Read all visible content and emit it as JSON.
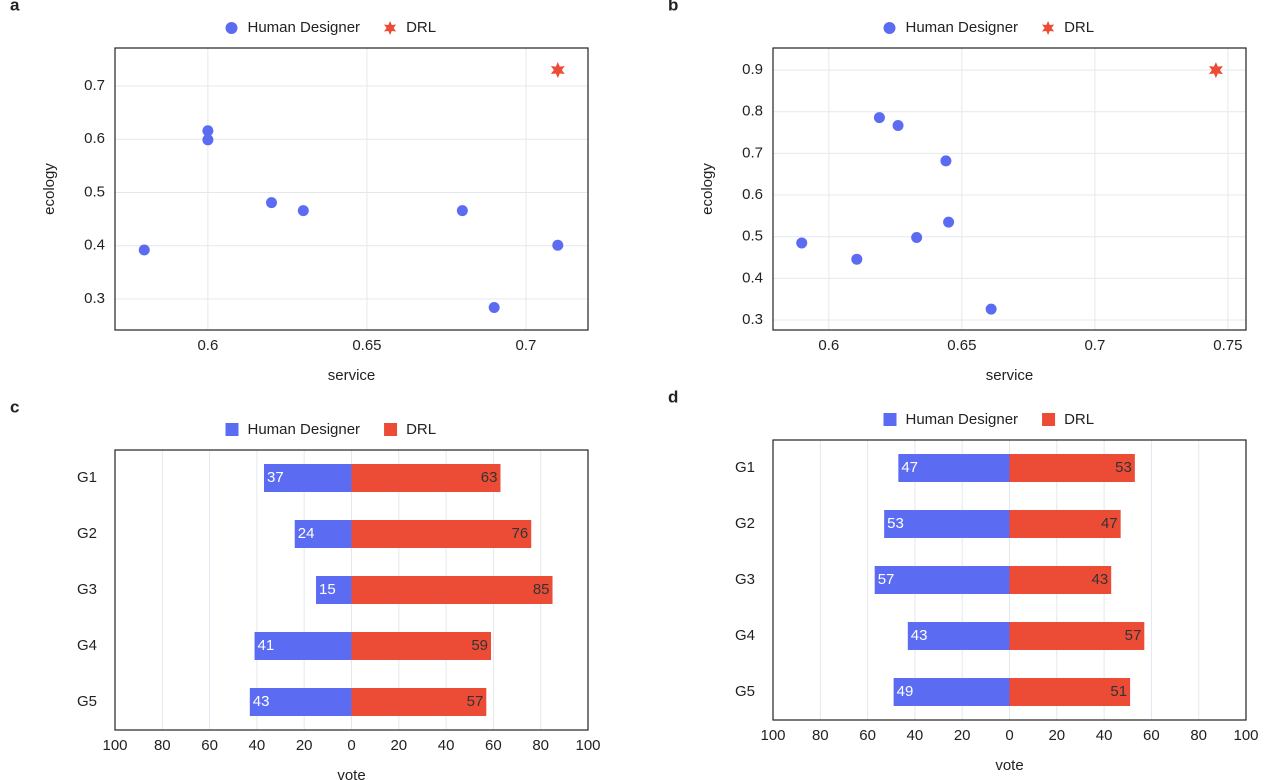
{
  "chart_data": [
    {
      "panel": "a",
      "type": "scatter",
      "x_label": "service",
      "y_label": "ecology",
      "series": [
        {
          "name": "Human Designer",
          "color": "#5b6cf2",
          "marker": "circle",
          "x": [
            0.58,
            0.6,
            0.6,
            0.62,
            0.63,
            0.68,
            0.69,
            0.71
          ],
          "values": [
            0.392,
            0.616,
            0.599,
            0.481,
            0.466,
            0.466,
            0.284,
            0.401
          ]
        },
        {
          "name": "DRL",
          "color": "#ec4c36",
          "marker": "star",
          "x": [
            0.71
          ],
          "values": [
            0.73
          ]
        }
      ],
      "xlim": [
        0.5708,
        0.7195
      ],
      "ylim": [
        0.2418,
        0.7714
      ],
      "xticks": [
        0.6,
        0.65,
        0.7
      ],
      "yticks": [
        0.3,
        0.4,
        0.5,
        0.6,
        0.7
      ],
      "grid": true
    },
    {
      "panel": "b",
      "type": "scatter",
      "x_label": "service",
      "y_label": "ecology",
      "series": [
        {
          "name": "Human Designer",
          "color": "#5b6cf2",
          "marker": "circle",
          "x": [
            0.5898,
            0.6105,
            0.619,
            0.626,
            0.633,
            0.644,
            0.645,
            0.661
          ],
          "values": [
            0.485,
            0.446,
            0.786,
            0.767,
            0.498,
            0.682,
            0.535,
            0.326
          ]
        },
        {
          "name": "DRL",
          "color": "#ec4c36",
          "marker": "star",
          "x": [
            0.7455
          ],
          "values": [
            0.9
          ]
        }
      ],
      "xlim": [
        0.579,
        0.7568
      ],
      "ylim": [
        0.276,
        0.953
      ],
      "xticks": [
        0.6,
        0.65,
        0.7,
        0.75
      ],
      "yticks": [
        0.3,
        0.4,
        0.5,
        0.6,
        0.7,
        0.8,
        0.9
      ],
      "grid": true
    },
    {
      "panel": "c",
      "type": "bar",
      "orientation": "horizontal",
      "x_label": "vote",
      "categories": [
        "G1",
        "G2",
        "G3",
        "G4",
        "G5"
      ],
      "series": [
        {
          "name": "Human Designer",
          "color": "#5b6cf2",
          "values": [
            -37,
            -24,
            -15,
            -41,
            -43
          ],
          "value_labels": [
            "37",
            "24",
            "15",
            "41",
            "43"
          ]
        },
        {
          "name": "DRL",
          "color": "#ec4c36",
          "values": [
            63,
            76,
            85,
            59,
            57
          ]
        }
      ],
      "xlim": [
        -100,
        100
      ],
      "xticks": [
        {
          "value": -100,
          "label": "100"
        },
        {
          "value": -80,
          "label": "80"
        },
        {
          "value": -60,
          "label": "60"
        },
        {
          "value": -40,
          "label": "40"
        },
        {
          "value": -20,
          "label": "20"
        },
        0,
        20,
        40,
        60,
        80,
        100
      ],
      "grid": true
    },
    {
      "panel": "d",
      "type": "bar",
      "orientation": "horizontal",
      "x_label": "vote",
      "categories": [
        "G1",
        "G2",
        "G3",
        "G4",
        "G5"
      ],
      "series": [
        {
          "name": "Human Designer",
          "color": "#5b6cf2",
          "values": [
            -47,
            -53,
            -57,
            -43,
            -49
          ],
          "value_labels": [
            "47",
            "53",
            "57",
            "43",
            "49"
          ]
        },
        {
          "name": "DRL",
          "color": "#ec4c36",
          "values": [
            53,
            47,
            43,
            57,
            51
          ]
        }
      ],
      "xlim": [
        -100,
        100
      ],
      "xticks": [
        {
          "value": -100,
          "label": "100"
        },
        {
          "value": -80,
          "label": "80"
        },
        {
          "value": -60,
          "label": "60"
        },
        {
          "value": -40,
          "label": "40"
        },
        {
          "value": -20,
          "label": "20"
        },
        0,
        20,
        40,
        60,
        80,
        100
      ],
      "grid": true
    }
  ]
}
